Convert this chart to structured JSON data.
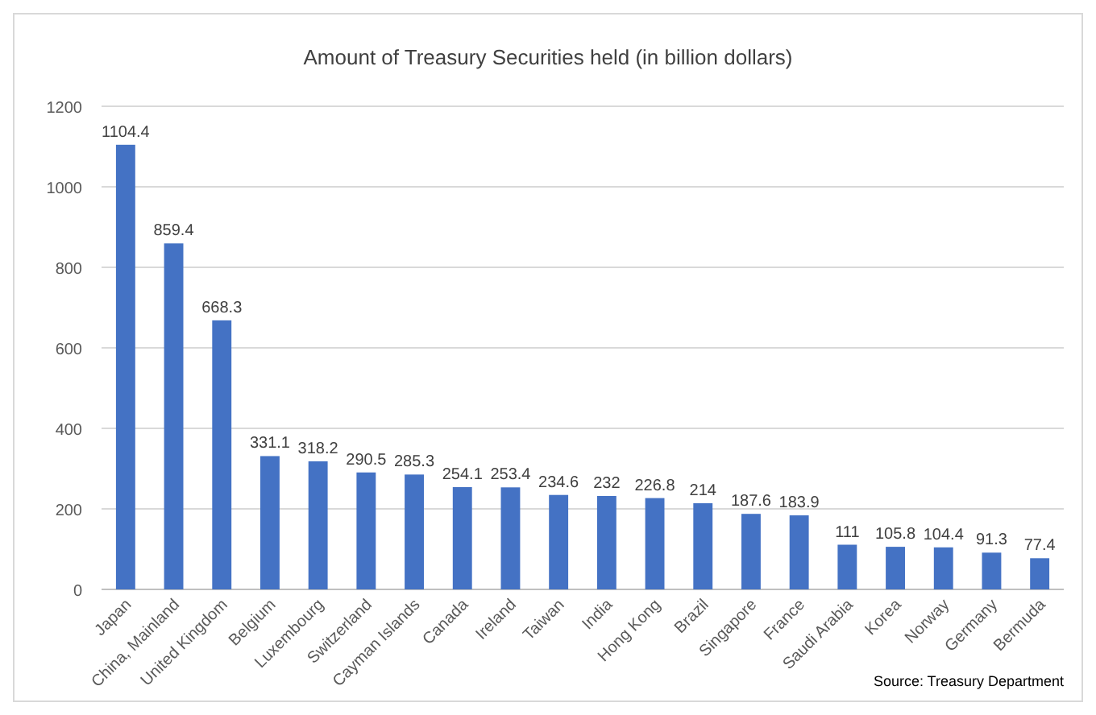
{
  "chart_data": {
    "type": "bar",
    "title": "Amount of Treasury Securities held (in billion dollars)",
    "categories": [
      "Japan",
      "China, Mainland",
      "United Kingdom",
      "Belgium",
      "Luxembourg",
      "Switzerland",
      "Cayman Islands",
      "Canada",
      "Ireland",
      "Taiwan",
      "India",
      "Hong Kong",
      "Brazil",
      "Singapore",
      "France",
      "Saudi Arabia",
      "Korea",
      "Norway",
      "Germany",
      "Bermuda"
    ],
    "values": [
      1104.4,
      859.4,
      668.3,
      331.1,
      318.2,
      290.5,
      285.3,
      254.1,
      253.4,
      234.6,
      232,
      226.8,
      214,
      187.6,
      183.9,
      111,
      105.8,
      104.4,
      91.3,
      77.4
    ],
    "color": "#4472c4",
    "ylim": [
      0,
      1200
    ],
    "yticks": [
      0,
      200,
      400,
      600,
      800,
      1000,
      1200
    ],
    "grid": "y",
    "data_labels": true,
    "annotations": [
      "Source: Treasury Department"
    ]
  }
}
